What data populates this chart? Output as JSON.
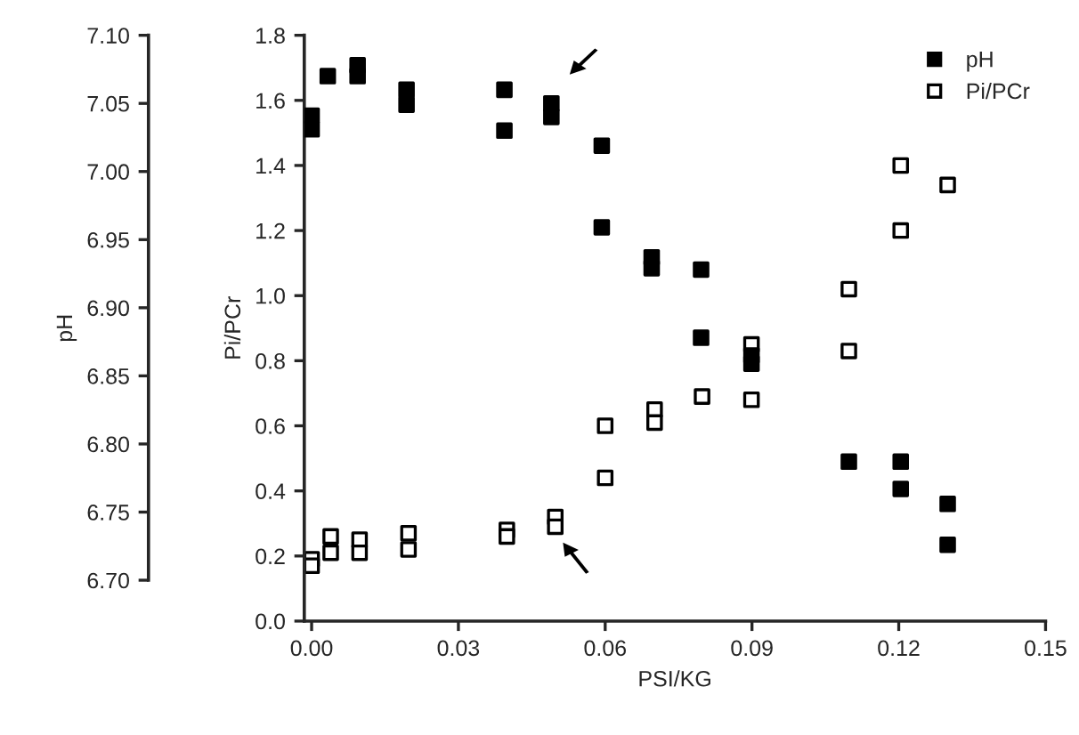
{
  "chart_data": {
    "type": "scatter",
    "xlabel": "PSI/KG",
    "ylabel": "Pi/PCr",
    "y2label": "pH",
    "xlim": [
      -0.0015,
      0.15
    ],
    "xticks": [
      {
        "value": 0.0,
        "label": "0.00"
      },
      {
        "value": 0.03,
        "label": "0.03"
      },
      {
        "value": 0.06,
        "label": "0.06"
      },
      {
        "value": 0.09,
        "label": "0.09"
      },
      {
        "value": 0.12,
        "label": "0.12"
      },
      {
        "value": 0.15,
        "label": "0.15"
      }
    ],
    "ylim": [
      0,
      1.8
    ],
    "yticks": [
      {
        "value": 0,
        "label": "0.0"
      },
      {
        "value": 0.2,
        "label": "0.2"
      },
      {
        "value": 0.4,
        "label": "0.4"
      },
      {
        "value": 0.6,
        "label": "0.6"
      },
      {
        "value": 0.8,
        "label": "0.8"
      },
      {
        "value": 1.0,
        "label": "1.0"
      },
      {
        "value": 1.2,
        "label": "1.2"
      },
      {
        "value": 1.4,
        "label": "1.4"
      },
      {
        "value": 1.6,
        "label": "1.6"
      },
      {
        "value": 1.8,
        "label": "1.8"
      }
    ],
    "y2lim": [
      6.67,
      7.1
    ],
    "y2ticks": [
      {
        "value": 6.7,
        "label": "6.70"
      },
      {
        "value": 6.75,
        "label": "6.75"
      },
      {
        "value": 6.8,
        "label": "6.80"
      },
      {
        "value": 6.85,
        "label": "6.85"
      },
      {
        "value": 6.9,
        "label": "6.90"
      },
      {
        "value": 6.95,
        "label": "6.95"
      },
      {
        "value": 7.0,
        "label": "7.00"
      },
      {
        "value": 7.05,
        "label": "7.05"
      },
      {
        "value": 7.1,
        "label": "7.10"
      }
    ],
    "marker": "square",
    "grid": false,
    "legend": "top right",
    "series": [
      {
        "name": "pH",
        "color": "#000000",
        "axis": "y2",
        "x": [
          0.0,
          0.0,
          0.0033,
          0.0094,
          0.0094,
          0.0194,
          0.0194,
          0.0394,
          0.0394,
          0.049,
          0.049,
          0.0593,
          0.0593,
          0.0695,
          0.0695,
          0.0796,
          0.0796,
          0.0899,
          0.0899,
          0.1098,
          0.1204,
          0.1204,
          0.13,
          0.13
        ],
        "values": [
          7.041,
          7.031,
          7.07,
          7.078,
          7.07,
          7.06,
          7.049,
          7.06,
          7.03,
          7.05,
          7.04,
          7.019,
          6.959,
          6.937,
          6.929,
          6.928,
          6.878,
          6.865,
          6.859,
          6.787,
          6.787,
          6.767,
          6.756,
          6.726
        ]
      },
      {
        "name": "Pi/PCr",
        "color": "#ffffff",
        "x": [
          0.0,
          0.0,
          0.0039,
          0.0039,
          0.0098,
          0.0098,
          0.0198,
          0.0198,
          0.0399,
          0.0399,
          0.0498,
          0.0498,
          0.06,
          0.06,
          0.0701,
          0.0701,
          0.0798,
          0.0899,
          0.0899,
          0.1098,
          0.1098,
          0.1204,
          0.1204,
          0.13
        ],
        "values": [
          0.19,
          0.17,
          0.26,
          0.21,
          0.25,
          0.21,
          0.27,
          0.22,
          0.28,
          0.26,
          0.32,
          0.29,
          0.6,
          0.44,
          0.65,
          0.61,
          0.69,
          0.85,
          0.68,
          1.02,
          0.83,
          1.4,
          1.2,
          1.34
        ]
      }
    ]
  }
}
